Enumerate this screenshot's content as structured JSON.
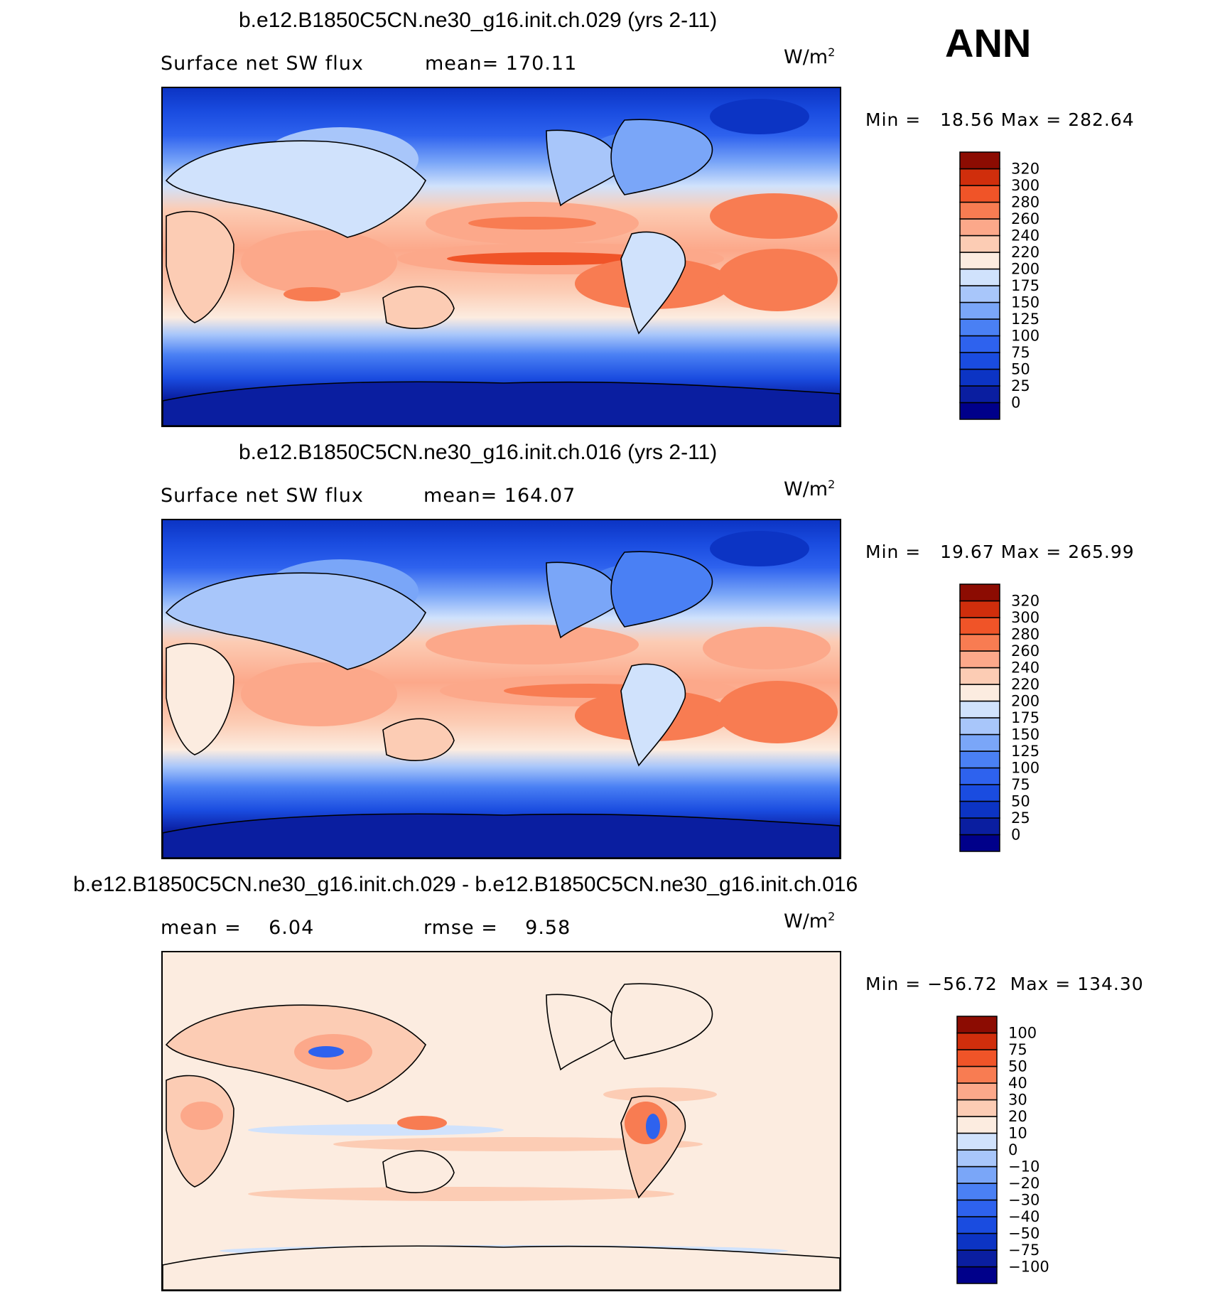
{
  "season": "ANN",
  "units": "W/m",
  "units_exp": "2",
  "panels": [
    {
      "title": "b.e12.B1850C5CN.ne30_g16.init.ch.029 (yrs 2-11)",
      "variable": "Surface net SW flux",
      "stat_label": "mean=",
      "stat_value": "170.11",
      "min_label": "Min =",
      "min_value": "18.56",
      "max_label": "Max =",
      "max_value": "282.64"
    },
    {
      "title": "b.e12.B1850C5CN.ne30_g16.init.ch.016 (yrs 2-11)",
      "variable": "Surface net SW flux",
      "stat_label": "mean=",
      "stat_value": "164.07",
      "min_label": "Min =",
      "min_value": "19.67",
      "max_label": "Max =",
      "max_value": "265.99"
    },
    {
      "title": "b.e12.B1850C5CN.ne30_g16.init.ch.029 - b.e12.B1850C5CN.ne30_g16.init.ch.016",
      "mean_label": "mean =",
      "mean_value": "6.04",
      "rmse_label": "rmse =",
      "rmse_value": "9.58",
      "min_label": "Min =",
      "min_value": "−56.72",
      "max_label": "Max =",
      "max_value": "134.30"
    }
  ],
  "colorbars": {
    "absolute": {
      "levels": [
        "0",
        "25",
        "50",
        "75",
        "100",
        "125",
        "150",
        "175",
        "200",
        "220",
        "240",
        "260",
        "280",
        "300",
        "320"
      ],
      "colors": [
        "#00008a",
        "#0a1ea0",
        "#0c34c4",
        "#1a4ce0",
        "#2e62ee",
        "#4a80f4",
        "#7aa6f8",
        "#a8c6fa",
        "#d0e2fc",
        "#fcece0",
        "#fcccb4",
        "#fca88a",
        "#f87c52",
        "#f05428",
        "#d02e0c",
        "#8c0c02"
      ]
    },
    "difference": {
      "levels": [
        "−100",
        "−75",
        "−50",
        "−40",
        "−30",
        "−20",
        "−10",
        "0",
        "10",
        "20",
        "30",
        "40",
        "50",
        "75",
        "100"
      ],
      "colors": [
        "#00008a",
        "#0a1ea0",
        "#0c34c4",
        "#1a4ce0",
        "#2e62ee",
        "#4a80f4",
        "#7aa6f8",
        "#a8c6fa",
        "#d0e2fc",
        "#fcece0",
        "#fcccb4",
        "#fca88a",
        "#f87c52",
        "#f05428",
        "#d02e0c",
        "#8c0c02"
      ]
    }
  }
}
